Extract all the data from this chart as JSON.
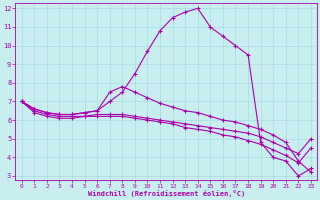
{
  "xlabel": "Windchill (Refroidissement éolien,°C)",
  "background_color": "#c8eef0",
  "grid_color": "#a8dce0",
  "line_color": "#aa00aa",
  "xlim_min": -0.5,
  "xlim_max": 23.5,
  "ylim_min": 2.8,
  "ylim_max": 12.3,
  "xticks": [
    0,
    1,
    2,
    3,
    4,
    5,
    6,
    7,
    8,
    9,
    10,
    11,
    12,
    13,
    14,
    15,
    16,
    17,
    18,
    19,
    20,
    21,
    22,
    23
  ],
  "yticks": [
    3,
    4,
    5,
    6,
    7,
    8,
    9,
    10,
    11,
    12
  ],
  "line1_x": [
    0,
    1,
    2,
    3,
    4,
    5,
    6,
    7,
    8,
    9,
    10,
    11,
    12,
    13,
    14,
    15,
    16,
    17,
    18,
    19,
    20,
    21,
    22,
    23
  ],
  "line1_y": [
    7.0,
    6.6,
    6.4,
    6.3,
    6.3,
    6.4,
    6.5,
    7.0,
    7.5,
    8.5,
    9.7,
    10.8,
    11.5,
    11.8,
    12.0,
    11.0,
    10.5,
    10.0,
    9.5,
    4.8,
    4.0,
    3.8,
    3.0,
    3.4
  ],
  "line2_x": [
    0,
    1,
    2,
    3,
    4,
    5,
    6,
    7,
    8,
    9,
    10,
    11,
    12,
    13,
    14,
    15,
    16,
    17,
    18,
    19,
    20,
    21,
    22,
    23
  ],
  "line2_y": [
    7.0,
    6.6,
    6.4,
    6.3,
    6.3,
    6.4,
    6.5,
    7.5,
    7.8,
    7.5,
    7.2,
    6.9,
    6.7,
    6.5,
    6.4,
    6.2,
    6.0,
    5.9,
    5.7,
    5.5,
    5.2,
    4.8,
    3.8,
    3.2
  ],
  "line3_x": [
    0,
    1,
    2,
    3,
    4,
    5,
    6,
    7,
    8,
    9,
    10,
    11,
    12,
    13,
    14,
    15,
    16,
    17,
    18,
    19,
    20,
    21,
    22,
    23
  ],
  "line3_y": [
    7.0,
    6.5,
    6.3,
    6.2,
    6.2,
    6.2,
    6.3,
    6.3,
    6.3,
    6.2,
    6.1,
    6.0,
    5.9,
    5.8,
    5.7,
    5.6,
    5.5,
    5.4,
    5.3,
    5.1,
    4.8,
    4.5,
    4.2,
    5.0
  ],
  "line4_x": [
    0,
    1,
    2,
    3,
    4,
    5,
    6,
    7,
    8,
    9,
    10,
    11,
    12,
    13,
    14,
    15,
    16,
    17,
    18,
    19,
    20,
    21,
    22,
    23
  ],
  "line4_y": [
    7.0,
    6.4,
    6.2,
    6.1,
    6.1,
    6.2,
    6.2,
    6.2,
    6.2,
    6.1,
    6.0,
    5.9,
    5.8,
    5.6,
    5.5,
    5.4,
    5.2,
    5.1,
    4.9,
    4.7,
    4.4,
    4.1,
    3.7,
    4.5
  ],
  "marker_size": 2.5,
  "line_width": 0.8
}
